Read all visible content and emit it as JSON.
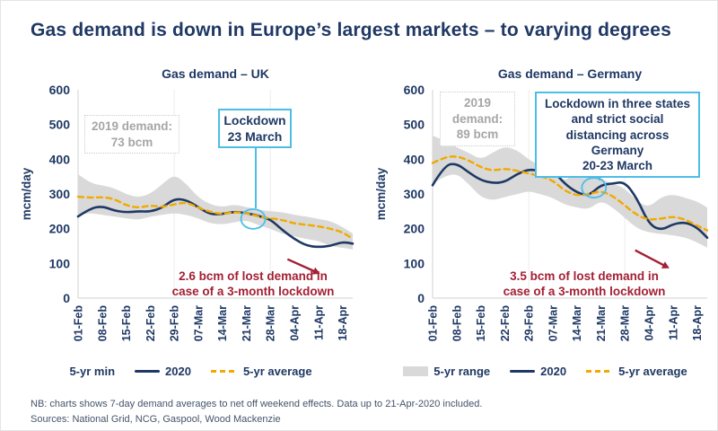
{
  "title": "Gas demand is down in Europe’s largest markets – to varying degrees",
  "footer": {
    "note": "NB: charts shows 7-day demand averages to net off weekend effects. Data up to 21-Apr-2020 included.",
    "sources": "Sources: National Grid, NCG, Gaspool, Wood Mackenzie"
  },
  "colors": {
    "navy": "#1f3864",
    "orange": "#f2a900",
    "band": "#d9d9d9",
    "callout_blue": "#4dbde8",
    "red": "#a32035",
    "gray_text": "#a6a6a6",
    "footer_text": "#44546a",
    "grid": "#ececec",
    "axis": "#d9d9d9"
  },
  "chart_data": [
    {
      "type": "line",
      "title": "Gas demand – UK",
      "ylabel": "mcm/day",
      "ylim": [
        0,
        600
      ],
      "yticks": [
        0,
        100,
        200,
        300,
        400,
        500,
        600
      ],
      "x_max_day": 80,
      "gridline_days": [
        28,
        56
      ],
      "x_tick_days": [
        0,
        7,
        14,
        21,
        28,
        35,
        42,
        49,
        56,
        63,
        70,
        77
      ],
      "x_tick_labels": [
        "01-Feb",
        "08-Feb",
        "15-Feb",
        "22-Feb",
        "29-Feb",
        "07-Mar",
        "14-Mar",
        "21-Mar",
        "28-Mar",
        "04-Apr",
        "11-Apr",
        "18-Apr"
      ],
      "x_days": [
        0,
        3.5,
        7,
        10.5,
        14,
        17.5,
        21,
        24.5,
        28,
        31.5,
        35,
        38.5,
        42,
        45.5,
        49,
        52.5,
        56,
        59.5,
        63,
        66.5,
        70,
        73.5,
        77,
        80
      ],
      "band": {
        "name": "5-yr range",
        "upper": [
          357,
          331,
          325,
          317,
          299,
          290,
          300,
          328,
          357,
          329,
          290,
          270,
          262,
          270,
          262,
          255,
          250,
          248,
          240,
          235,
          228,
          222,
          205,
          186
        ],
        "lower": [
          239,
          245,
          240,
          235,
          230,
          225,
          235,
          240,
          245,
          240,
          230,
          215,
          212,
          218,
          225,
          210,
          200,
          185,
          178,
          170,
          165,
          150,
          145,
          140
        ]
      },
      "series": [
        {
          "name": "2020",
          "style": "solid",
          "values": [
            235,
            258,
            265,
            252,
            247,
            250,
            249,
            260,
            286,
            283,
            262,
            241,
            242,
            249,
            245,
            237,
            227,
            196,
            170,
            151,
            147,
            150,
            162,
            157
          ]
        },
        {
          "name": "5-yr average",
          "style": "dashed",
          "values": [
            292,
            289,
            291,
            286,
            267,
            260,
            267,
            262,
            270,
            276,
            261,
            248,
            242,
            248,
            245,
            235,
            230,
            225,
            215,
            211,
            207,
            200,
            190,
            171
          ]
        }
      ],
      "annotations": {
        "demand_note_lines": [
          "2019 demand:",
          "73 bcm"
        ],
        "lockdown_callout_lines": [
          "Lockdown",
          "23 March"
        ],
        "event_circle": {
          "day": 51,
          "value": 228
        },
        "loss_note_lines": [
          "2.6 bcm of lost demand in",
          "case of a 3-month lockdown"
        ],
        "loss_arrow": {
          "from": {
            "day": 61,
            "value": 112
          },
          "to": {
            "day": 70.5,
            "value": 70
          }
        }
      },
      "legend": [
        {
          "label": "5-yr min",
          "swatch": "none"
        },
        {
          "label": "2020",
          "swatch": "line"
        },
        {
          "label": "5-yr average",
          "swatch": "dash"
        }
      ]
    },
    {
      "type": "line",
      "title": "Gas demand – Germany",
      "ylabel": "mcm/day",
      "ylim": [
        0,
        600
      ],
      "yticks": [
        0,
        100,
        200,
        300,
        400,
        500,
        600
      ],
      "x_max_day": 80,
      "gridline_days": [
        28,
        56
      ],
      "x_tick_days": [
        0,
        7,
        14,
        21,
        28,
        35,
        42,
        49,
        56,
        63,
        70,
        77
      ],
      "x_tick_labels": [
        "01-Feb",
        "08-Feb",
        "15-Feb",
        "22-Feb",
        "29-Feb",
        "07-Mar",
        "14-Mar",
        "21-Mar",
        "28-Mar",
        "04-Apr",
        "11-Apr",
        "18-Apr"
      ],
      "x_days": [
        0,
        3.5,
        7,
        10.5,
        14,
        17.5,
        21,
        24.5,
        28,
        31.5,
        35,
        38.5,
        42,
        45.5,
        49,
        52.5,
        56,
        59.5,
        63,
        66.5,
        70,
        73.5,
        77,
        80
      ],
      "band": {
        "name": "5-yr range",
        "upper": [
          468,
          454,
          434,
          419,
          399,
          419,
          437,
          427,
          399,
          381,
          361,
          334,
          369,
          393,
          344,
          329,
          317,
          279,
          261,
          291,
          299,
          289,
          279,
          261
        ],
        "lower": [
          329,
          351,
          359,
          329,
          291,
          281,
          291,
          299,
          309,
          299,
          289,
          269,
          261,
          255,
          281,
          261,
          231,
          201,
          189,
          185,
          181,
          175,
          161,
          145
        ]
      },
      "series": [
        {
          "name": "2020",
          "style": "solid",
          "values": [
            325,
            383,
            388,
            362,
            340,
            331,
            334,
            357,
            371,
            366,
            369,
            329,
            304,
            294,
            326,
            330,
            335,
            288,
            213,
            195,
            213,
            219,
            204,
            174
          ]
        },
        {
          "name": "5-yr average",
          "style": "dashed",
          "values": [
            389,
            406,
            409,
            397,
            377,
            367,
            373,
            367,
            359,
            351,
            339,
            309,
            295,
            299,
            309,
            294,
            267,
            239,
            225,
            229,
            235,
            227,
            209,
            195
          ]
        }
      ],
      "annotations": {
        "demand_note_lines": [
          "2019",
          "demand:",
          "89 bcm"
        ],
        "lockdown_callout_lines": [
          "Lockdown in three states",
          "and strict social",
          "distancing across",
          "Germany",
          "20-23 March"
        ],
        "event_circle": {
          "day": 47,
          "value": 318
        },
        "loss_note_lines": [
          "3.5 bcm of lost demand in",
          "case of a 3-month lockdown"
        ],
        "loss_arrow": {
          "from": {
            "day": 59,
            "value": 138
          },
          "to": {
            "day": 69,
            "value": 86
          }
        }
      },
      "legend": [
        {
          "label": "5-yr range",
          "swatch": "box"
        },
        {
          "label": "2020",
          "swatch": "line"
        },
        {
          "label": "5-yr average",
          "swatch": "dash"
        }
      ]
    }
  ]
}
